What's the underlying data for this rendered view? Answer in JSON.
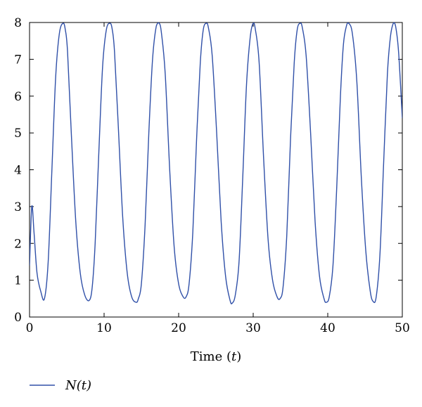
{
  "chart_data": {
    "type": "line",
    "title": "",
    "xlabel_text": "Time (",
    "xlabel_var": "t",
    "xlabel_close": ")",
    "ylabel": "",
    "xlim": [
      0,
      50
    ],
    "ylim": [
      0,
      8
    ],
    "x_ticks": [
      0,
      10,
      20,
      30,
      40,
      50
    ],
    "x_tick_labels": [
      "0",
      "10",
      "20",
      "30",
      "40",
      "50"
    ],
    "y_ticks": [
      0,
      1,
      2,
      3,
      4,
      5,
      6,
      7,
      8
    ],
    "y_tick_labels": [
      "0",
      "1",
      "2",
      "3",
      "4",
      "5",
      "6",
      "7",
      "8"
    ],
    "grid": false,
    "legend_position": "bottom-left",
    "series": [
      {
        "name": "N(t)",
        "color": "#3050a8",
        "x": [
          0,
          0.3,
          0.6,
          1.0,
          1.5,
          2.0,
          2.5,
          3.0,
          3.5,
          4.0,
          4.5,
          4.8,
          5.1,
          5.6,
          6.2,
          6.8,
          7.4,
          8.0,
          8.4,
          8.8,
          9.3,
          9.8,
          10.3,
          10.8,
          11.1,
          11.4,
          11.9,
          12.5,
          13.1,
          13.7,
          14.3,
          14.6,
          15.0,
          15.5,
          16.0,
          16.5,
          17.0,
          17.4,
          17.7,
          18.2,
          18.8,
          19.4,
          20.0,
          20.6,
          21.0,
          21.4,
          21.9,
          22.4,
          22.9,
          23.3,
          23.7,
          24.0,
          24.5,
          25.1,
          25.7,
          26.3,
          26.9,
          27.2,
          27.6,
          28.1,
          28.6,
          29.1,
          29.6,
          30.0,
          30.3,
          30.8,
          31.4,
          32.0,
          32.6,
          33.2,
          33.6,
          34.0,
          34.5,
          35.0,
          35.5,
          35.9,
          36.3,
          36.6,
          37.1,
          37.7,
          38.3,
          38.9,
          39.5,
          39.8,
          40.2,
          40.7,
          41.2,
          41.7,
          42.1,
          42.5,
          42.8,
          43.3,
          43.9,
          44.5,
          45.1,
          45.7,
          46.1,
          46.5,
          47.0,
          47.5,
          48.0,
          48.4,
          48.8,
          49.1,
          49.5,
          50.0
        ],
        "y": [
          1.4,
          3.0,
          2.3,
          1.2,
          0.7,
          0.5,
          1.5,
          4.0,
          6.5,
          7.7,
          7.98,
          7.8,
          7.2,
          5.0,
          2.6,
          1.2,
          0.6,
          0.45,
          0.8,
          2.0,
          4.5,
          6.8,
          7.8,
          7.98,
          7.8,
          7.2,
          5.2,
          2.7,
          1.2,
          0.55,
          0.4,
          0.5,
          0.9,
          2.5,
          5.0,
          7.0,
          7.9,
          7.98,
          7.7,
          6.6,
          4.0,
          1.9,
          0.9,
          0.55,
          0.55,
          0.9,
          2.3,
          4.8,
          6.9,
          7.8,
          7.98,
          7.85,
          7.1,
          5.0,
          2.6,
          1.1,
          0.45,
          0.38,
          0.6,
          1.5,
          3.8,
          6.3,
          7.6,
          7.98,
          7.8,
          6.9,
          4.3,
          2.1,
          1.0,
          0.55,
          0.5,
          0.8,
          2.2,
          4.8,
          6.9,
          7.8,
          7.98,
          7.85,
          7.1,
          5.0,
          2.6,
          1.1,
          0.5,
          0.4,
          0.55,
          1.4,
          3.5,
          6.0,
          7.4,
          7.9,
          7.98,
          7.7,
          6.4,
          3.8,
          1.8,
          0.7,
          0.42,
          0.55,
          1.7,
          4.2,
          6.6,
          7.6,
          7.98,
          7.9,
          7.2,
          5.4
        ]
      }
    ]
  }
}
